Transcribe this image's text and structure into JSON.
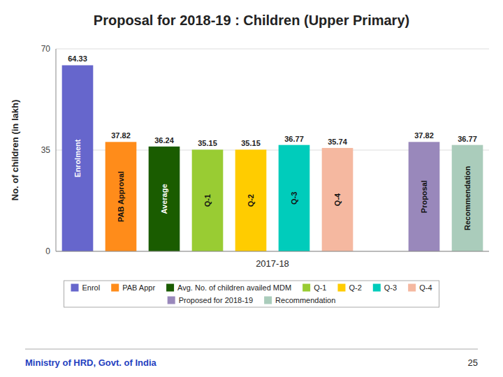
{
  "chart_data": {
    "type": "bar",
    "title": "Proposal for 2018-19 : Children (Upper Primary)",
    "y_label": "No. of children (in lakh)",
    "x_label": "2017-18",
    "categories": [
      "Enrolment",
      "PAB Approval",
      "Average",
      "Q-1",
      "Q-2",
      "Q-3",
      "Q-4",
      null,
      "Proposal",
      "Recommendation"
    ],
    "values": [
      64.33,
      37.82,
      36.24,
      35.15,
      35.15,
      36.77,
      35.74,
      0,
      37.82,
      36.77
    ],
    "colors": [
      "#6666cc",
      "#ff8c1a",
      "#1a5c00",
      "#99cc33",
      "#ffcc00",
      "#00ccbb",
      "#f5b8a0",
      "#ffffff",
      "#9988bb",
      "#aaccbb"
    ],
    "ylim": [
      0,
      70
    ],
    "yticks": [
      0,
      35,
      70
    ],
    "grid": true,
    "data_labels": true,
    "tick_labels": "y",
    "legend": "bottom",
    "legend_entries": [
      {
        "name": "Enrol",
        "color": "#6666cc"
      },
      {
        "name": "PAB Appr",
        "color": "#ff8c1a"
      },
      {
        "name": "Avg. No. of children availed MDM",
        "color": "#1a5c00"
      },
      {
        "name": "Q-1",
        "color": "#99cc33"
      },
      {
        "name": "Q-2",
        "color": "#ffcc00"
      },
      {
        "name": "Q-3",
        "color": "#00ccbb"
      },
      {
        "name": "Q-4",
        "color": "#f5b8a0"
      },
      {
        "name": "Proposed for 2018-19",
        "color": "#9988bb"
      },
      {
        "name": "Recommendation",
        "color": "#aaccbb"
      }
    ],
    "footer": "Ministry of HRD, Govt. of India",
    "page_number": "25"
  }
}
